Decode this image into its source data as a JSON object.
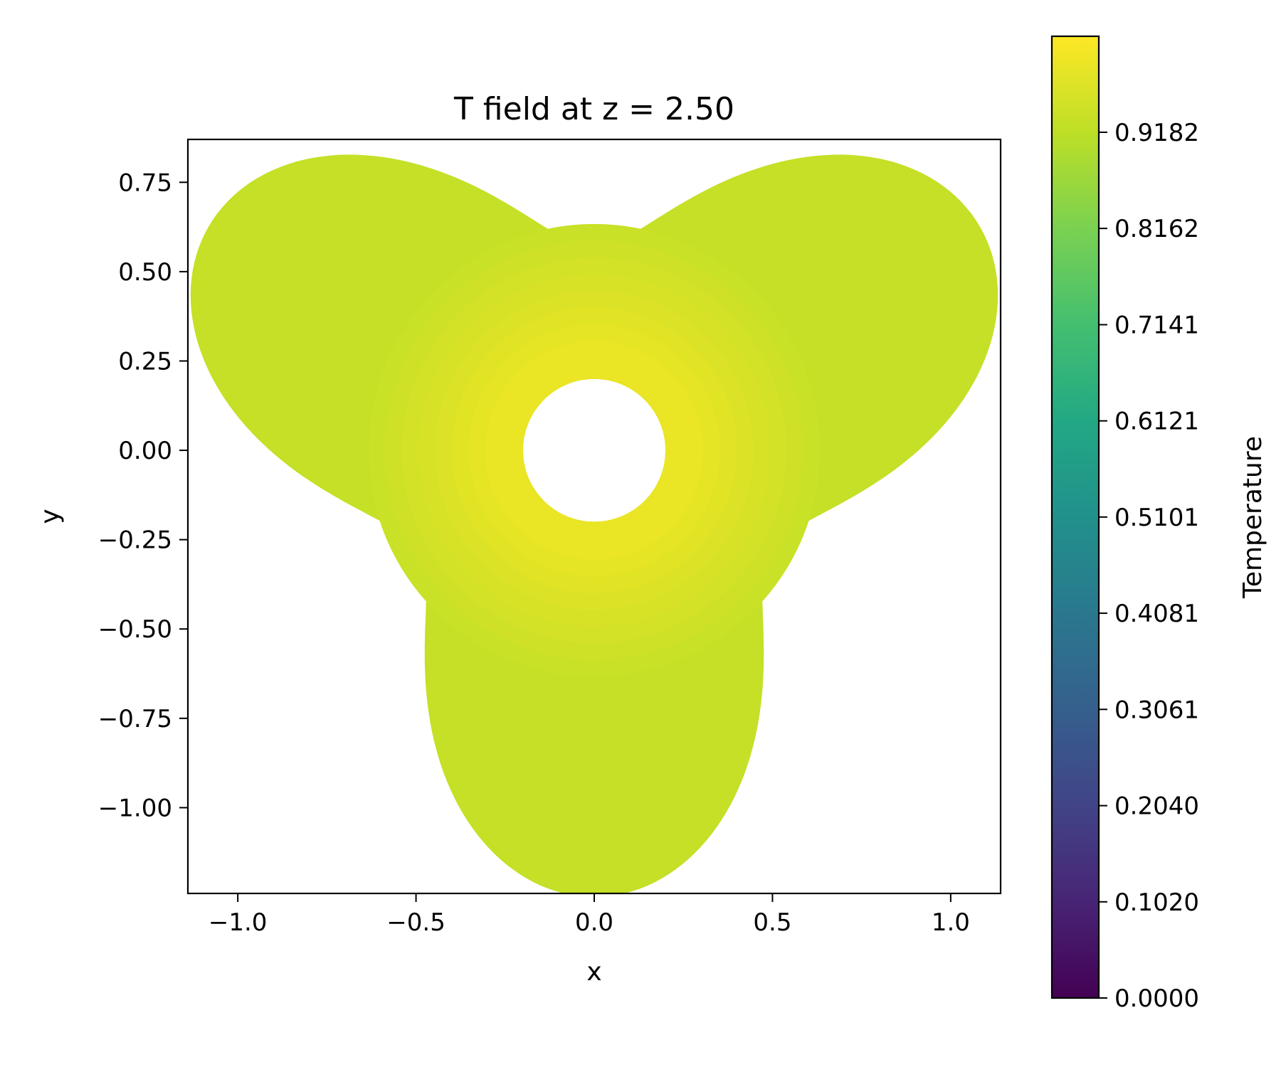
{
  "chart_data": {
    "type": "heatmap",
    "title": "T field at z = 2.50",
    "xlabel": "x",
    "ylabel": "y",
    "xlim": [
      -1.14,
      1.14
    ],
    "ylim": [
      -1.24,
      0.87
    ],
    "x_ticks": [
      {
        "value": -1.0,
        "label": "−1.0"
      },
      {
        "value": -0.5,
        "label": "−0.5"
      },
      {
        "value": 0.0,
        "label": "0.0"
      },
      {
        "value": 0.5,
        "label": "0.5"
      },
      {
        "value": 1.0,
        "label": "1.0"
      }
    ],
    "y_ticks": [
      {
        "value": 0.75,
        "label": "0.75"
      },
      {
        "value": 0.5,
        "label": "0.50"
      },
      {
        "value": 0.25,
        "label": "0.25"
      },
      {
        "value": 0.0,
        "label": "0.00"
      },
      {
        "value": -0.25,
        "label": "−0.25"
      },
      {
        "value": -0.5,
        "label": "−0.50"
      },
      {
        "value": -0.75,
        "label": "−0.75"
      },
      {
        "value": -1.0,
        "label": "−1.00"
      }
    ],
    "domain": {
      "shape": "three-lobed",
      "hole_radius": 0.2,
      "hole_center": [
        0,
        0
      ]
    },
    "field": {
      "max_value_near_hole": 0.99,
      "min_value_lobe_tips": 0.93,
      "value_range": [
        0.93,
        0.99
      ]
    },
    "colorbar": {
      "label": "Temperature",
      "colormap": "viridis",
      "vmin": 0.0,
      "vmax": 1.02,
      "ticks": [
        {
          "value": 0.0,
          "label": "0.0000"
        },
        {
          "value": 0.102,
          "label": "0.1020"
        },
        {
          "value": 0.204,
          "label": "0.2040"
        },
        {
          "value": 0.3061,
          "label": "0.3061"
        },
        {
          "value": 0.4081,
          "label": "0.4081"
        },
        {
          "value": 0.5101,
          "label": "0.5101"
        },
        {
          "value": 0.6121,
          "label": "0.6121"
        },
        {
          "value": 0.7141,
          "label": "0.7141"
        },
        {
          "value": 0.8162,
          "label": "0.8162"
        },
        {
          "value": 0.9182,
          "label": "0.9182"
        }
      ]
    }
  }
}
